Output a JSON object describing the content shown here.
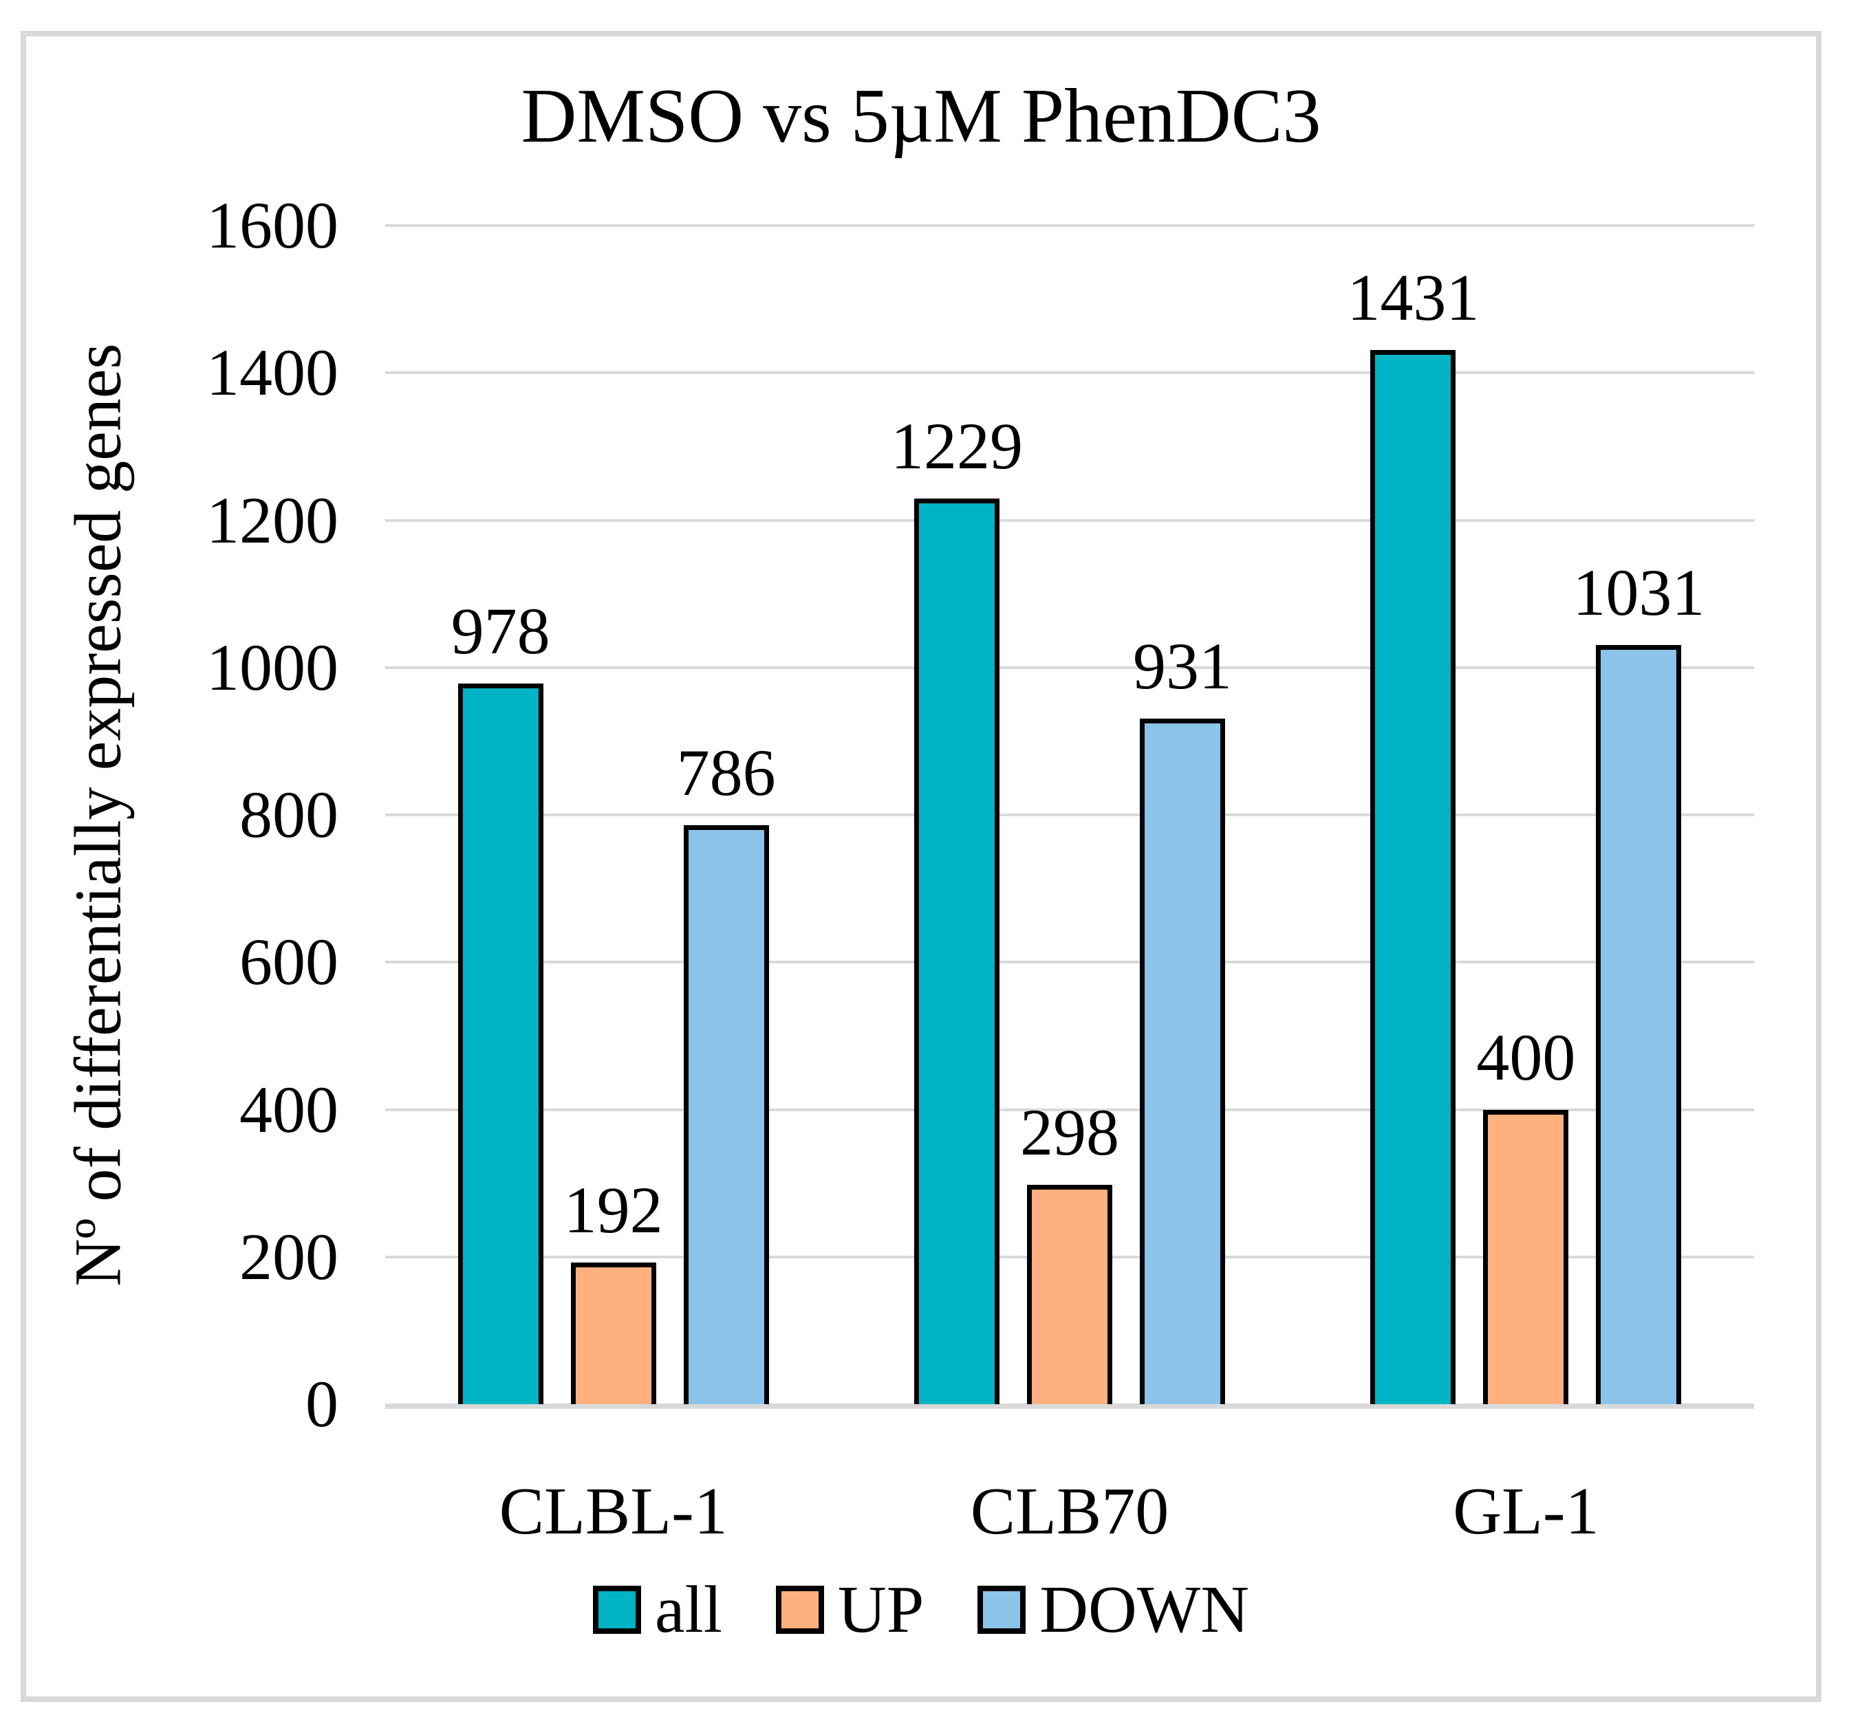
{
  "figure": {
    "title": "DMSO vs 5µM PhenDC3"
  },
  "chart_data": {
    "type": "bar",
    "title": "DMSO vs 5µM PhenDC3",
    "categories": [
      "CLBL-1",
      "CLB70",
      "GL-1"
    ],
    "series": [
      {
        "name": "all",
        "color": "#00B4C5",
        "values": [
          978,
          1229,
          1431
        ]
      },
      {
        "name": "UP",
        "color": "#FFB07E",
        "values": [
          192,
          298,
          400
        ]
      },
      {
        "name": "DOWN",
        "color": "#8CC3E8",
        "values": [
          786,
          931,
          1031
        ]
      }
    ],
    "xlabel": "",
    "ylabel": "Nº of differentially expressed genes",
    "ylim": [
      0,
      1600
    ],
    "yticks": [
      0,
      200,
      400,
      600,
      800,
      1000,
      1200,
      1400,
      1600
    ],
    "grid": true,
    "data_labels": true,
    "legend_position": "bottom",
    "colors": {
      "gridline": "#D9D9D9",
      "frame": "#D9D9D9",
      "bar_border": "#000000",
      "text": "#000000"
    }
  }
}
